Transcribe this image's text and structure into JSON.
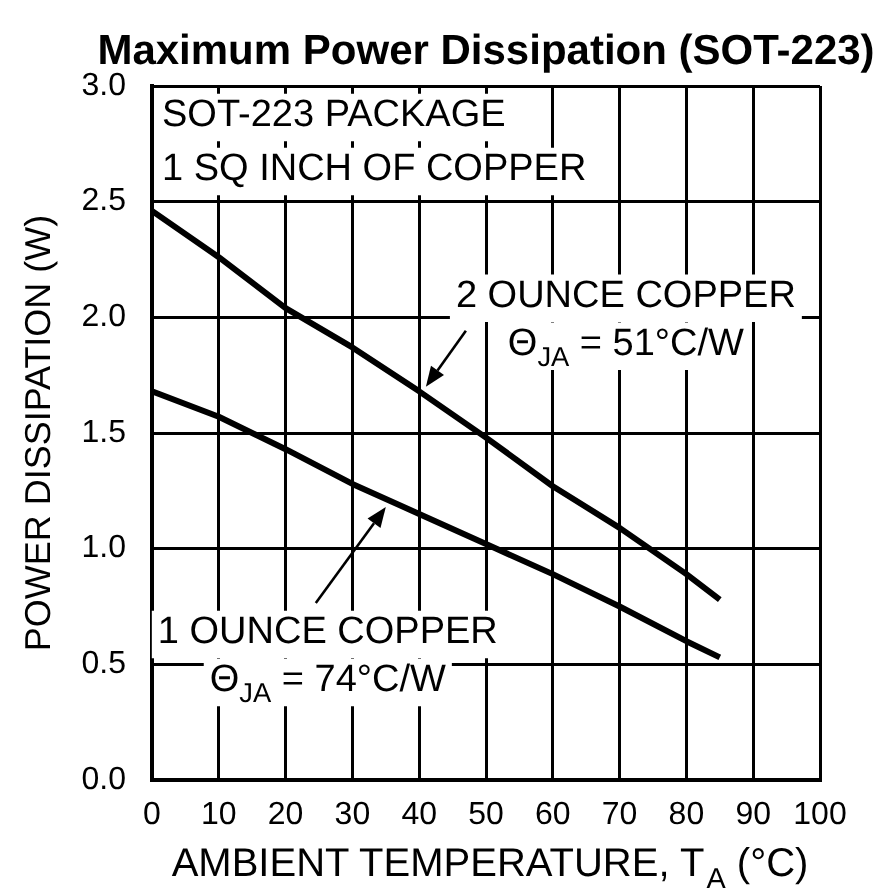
{
  "chart_data": {
    "type": "line",
    "title": "Maximum Power Dissipation (SOT-223)",
    "xlabel": "AMBIENT TEMPERATURE, T$_{A}$ (°C)",
    "ylabel": "POWER DISSIPATION (W)",
    "x": [
      0,
      10,
      20,
      30,
      40,
      50,
      60,
      70,
      80,
      85
    ],
    "series": [
      {
        "color": "#000000",
        "values": [
          2.46,
          2.26,
          2.04,
          1.87,
          1.68,
          1.48,
          1.27,
          1.09,
          0.89,
          0.78
        ]
      },
      {
        "color": "#000000",
        "values": [
          1.68,
          1.57,
          1.43,
          1.28,
          1.15,
          1.02,
          0.89,
          0.75,
          0.6,
          0.53
        ]
      }
    ],
    "xlim": [
      0,
      100
    ],
    "ylim": [
      0,
      3
    ],
    "xticks": [
      0,
      10,
      20,
      30,
      40,
      50,
      60,
      70,
      80,
      90,
      100
    ],
    "yticks": [
      {
        "value": 0,
        "label": "0.0"
      },
      0.5,
      {
        "value": 1,
        "label": "1.0"
      },
      1.5,
      {
        "value": 2,
        "label": "2.0"
      },
      2.5,
      {
        "value": 3,
        "label": "3.0"
      }
    ],
    "grid": true,
    "legend": false,
    "marker": "none",
    "line_style": "solid",
    "annotations": [
      "SOT-223 PACKAGE\n1 SQ INCH OF COPPER",
      {
        "text": "2 OUNCE COPPER\nΘ$_{JA}$ = 51°C/W",
        "x": 41,
        "y": 1.7
      },
      {
        "text": "1 OUNCE COPPER\nΘ$_{JA}$ = 74°C/W",
        "x": 35,
        "y": 1.18
      }
    ]
  }
}
